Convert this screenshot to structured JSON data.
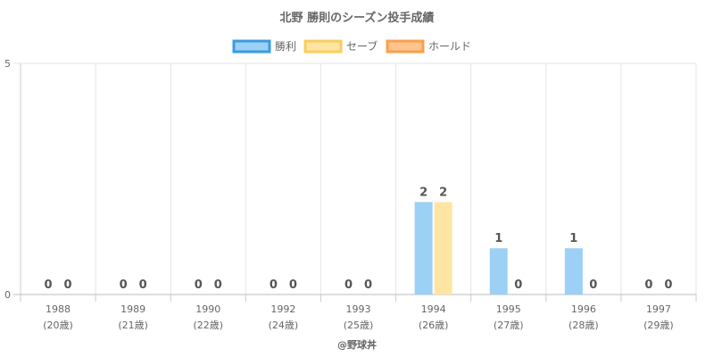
{
  "chart_data": {
    "type": "bar",
    "title": "北野 勝則のシーズン投手成績",
    "categories": [
      "1988",
      "1989",
      "1990",
      "1992",
      "1993",
      "1994",
      "1995",
      "1996",
      "1997"
    ],
    "category_sublabels": [
      "(20歳)",
      "(21歳)",
      "(22歳)",
      "(24歳)",
      "(25歳)",
      "(26歳)",
      "(27歳)",
      "(28歳)",
      "(29歳)"
    ],
    "series": [
      {
        "name": "勝利",
        "values": [
          0,
          0,
          0,
          0,
          0,
          2,
          1,
          1,
          0
        ],
        "color": "#9cd0f5",
        "border": "#3a9be0"
      },
      {
        "name": "セーブ",
        "values": [
          0,
          0,
          0,
          0,
          0,
          2,
          0,
          0,
          0
        ],
        "color": "#ffe5a3",
        "border": "#f9cd5c"
      },
      {
        "name": "ホールド",
        "values": [
          null,
          null,
          null,
          null,
          null,
          null,
          null,
          null,
          null
        ],
        "color": "#ffc38e",
        "border": "#f7a04e"
      }
    ],
    "ylim": [
      0,
      5
    ],
    "yticks": [
      0,
      5
    ],
    "legend_position": "top",
    "grid": true,
    "credit": "@野球丼"
  }
}
